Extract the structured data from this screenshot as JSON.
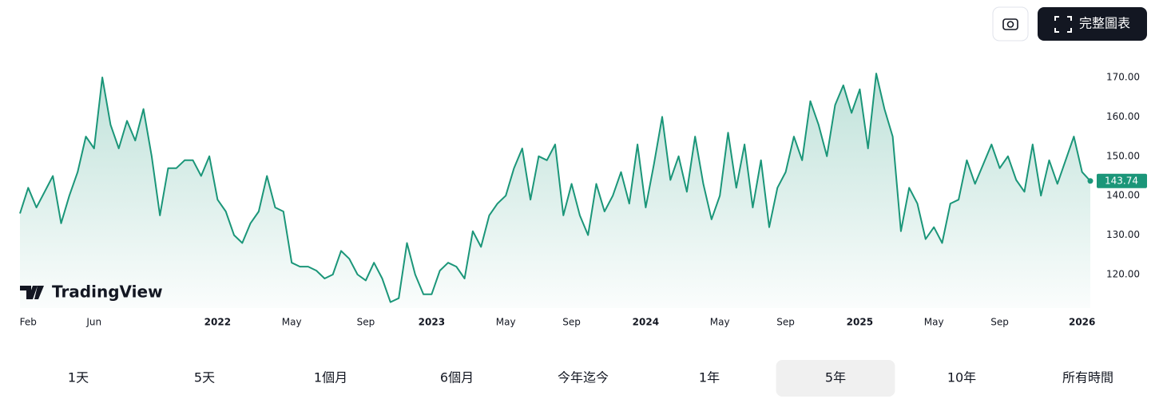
{
  "toolbar": {
    "full_chart_button": "完整圖表"
  },
  "watermark": "TradingView",
  "chart_data": {
    "type": "line",
    "categories": [
      null,
      "Feb",
      null,
      null,
      null,
      null,
      null,
      null,
      null,
      "Jun",
      null,
      null,
      null,
      null,
      null,
      null,
      null,
      null,
      null,
      null,
      null,
      null,
      null,
      null,
      "2022",
      null,
      null,
      null,
      null,
      null,
      null,
      null,
      null,
      "May",
      null,
      null,
      null,
      null,
      null,
      null,
      null,
      null,
      "Sep",
      null,
      null,
      null,
      null,
      null,
      null,
      null,
      "2023",
      null,
      null,
      null,
      null,
      null,
      null,
      null,
      null,
      "May",
      null,
      null,
      null,
      null,
      null,
      null,
      null,
      "Sep",
      null,
      null,
      null,
      null,
      null,
      null,
      null,
      null,
      "2024",
      null,
      null,
      null,
      null,
      null,
      null,
      null,
      null,
      "May",
      null,
      null,
      null,
      null,
      null,
      null,
      null,
      "Sep",
      null,
      null,
      null,
      null,
      null,
      null,
      null,
      null,
      "2025",
      null,
      null,
      null,
      null,
      null,
      null,
      null,
      null,
      "May",
      null,
      null,
      null,
      null,
      null,
      null,
      null,
      "Sep",
      null,
      null,
      null,
      null,
      null,
      null,
      null,
      null,
      null,
      "2026",
      null
    ],
    "series": [
      {
        "color": "#1b9679",
        "values": [
          135.5,
          142,
          137,
          141,
          145,
          133,
          140,
          146,
          155,
          152,
          170,
          158,
          152,
          159,
          154,
          162,
          150,
          135,
          147,
          147,
          149,
          149,
          145,
          150,
          139,
          136,
          130,
          128,
          133,
          136,
          145,
          137,
          136,
          123,
          122,
          122,
          121,
          119,
          120,
          126,
          124,
          120,
          118.5,
          123,
          119,
          113,
          114,
          128,
          120,
          115,
          115,
          121,
          123,
          122,
          119,
          131,
          127,
          135,
          138,
          140,
          147,
          152,
          139,
          150,
          149,
          153,
          135,
          143,
          135,
          130,
          143,
          136,
          140,
          146,
          138,
          153,
          137,
          148,
          160,
          144,
          150,
          141,
          155,
          143,
          134,
          140,
          156,
          142,
          153,
          137,
          149,
          132,
          142,
          146,
          155,
          149,
          164,
          158,
          150,
          163,
          168,
          161,
          167,
          152,
          171,
          162,
          155,
          131,
          142,
          138,
          129,
          132,
          128,
          138,
          139,
          149,
          143,
          148,
          153,
          147,
          150,
          144,
          141,
          153,
          140,
          149,
          143,
          149,
          155,
          146,
          143.74
        ]
      }
    ],
    "ylim": [
      111.5,
      177.5
    ],
    "yticks": [
      {
        "value": 120,
        "label": "120.00"
      },
      {
        "value": 130,
        "label": "130.00"
      },
      {
        "value": 140,
        "label": "140.00"
      },
      {
        "value": 150,
        "label": "150.00"
      },
      {
        "value": 160,
        "label": "160.00"
      },
      {
        "value": 170,
        "label": "170.00"
      }
    ],
    "grid": false
  },
  "range_buttons": {
    "items": [
      "1天",
      "5天",
      "1個月",
      "6個月",
      "今年迄今",
      "1年",
      "5年",
      "10年",
      "所有時間"
    ],
    "selected": 6
  }
}
